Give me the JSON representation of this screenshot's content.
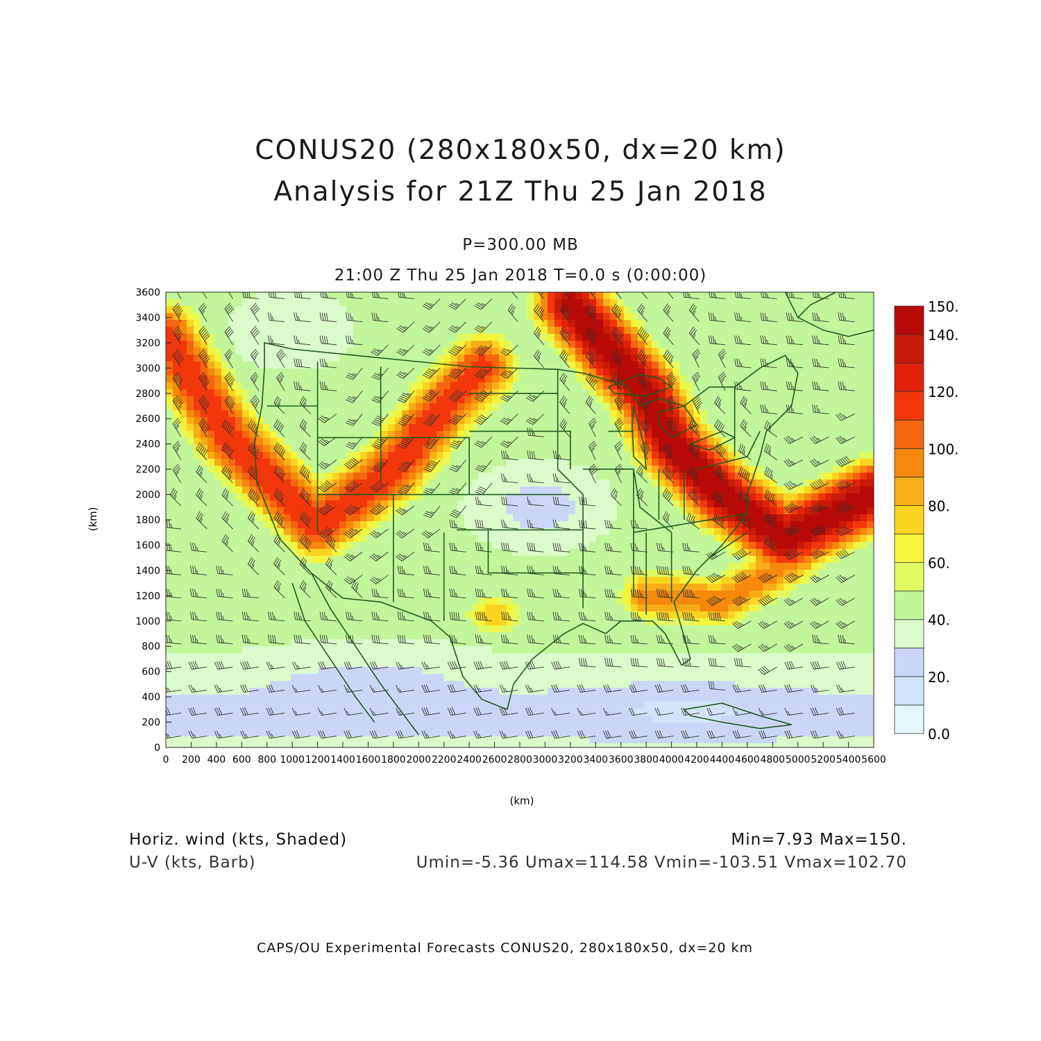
{
  "header": {
    "title_line1": "CONUS20 (280x180x50, dx=20 km)",
    "title_line2": "Analysis for 21Z Thu 25 Jan 2018",
    "level": "P=300.00 MB",
    "time": "21:00 Z Thu 25 Jan 2018    T=0.0 s (0:00:00)"
  },
  "axes": {
    "x_label": "(km)",
    "y_label": "(km)",
    "x_ticks": [
      0,
      200,
      400,
      600,
      800,
      1000,
      1200,
      1400,
      1600,
      1800,
      2000,
      2200,
      2400,
      2600,
      2800,
      3000,
      3200,
      3400,
      3600,
      3800,
      4000,
      4200,
      4400,
      4600,
      4800,
      5000,
      5200,
      5400,
      5600
    ],
    "y_ticks": [
      0,
      200,
      400,
      600,
      800,
      1000,
      1200,
      1400,
      1600,
      1800,
      2000,
      2200,
      2400,
      2600,
      2800,
      3000,
      3200,
      3400,
      3600
    ],
    "x_range": [
      0,
      5600
    ],
    "y_range": [
      0,
      3600
    ]
  },
  "colorbar": {
    "labels": [
      "0.0",
      "20.",
      "40.",
      "60.",
      "80.",
      "100.",
      "120.",
      "140.",
      "150."
    ],
    "levels": [
      0,
      10,
      20,
      30,
      40,
      50,
      60,
      70,
      80,
      90,
      100,
      110,
      120,
      130,
      140,
      150
    ],
    "colors": [
      "#e6f7fc",
      "#d2e4fa",
      "#cbd6f7",
      "#d9fcca",
      "#c1f79a",
      "#e0fa62",
      "#f4f43a",
      "#fbd422",
      "#f8ac18",
      "#f6880c",
      "#f56510",
      "#f3370c",
      "#df220a",
      "#c81a08",
      "#b80a06"
    ]
  },
  "chart_data": {
    "type": "heatmap",
    "field": "Horizontal wind speed (kts) with U-V barbs",
    "x_range_km": [
      0,
      5600
    ],
    "y_range_km": [
      0,
      3600
    ],
    "value_range": [
      7.93,
      150
    ],
    "jets": [
      {
        "path_km": [
          [
            0,
            3250
          ],
          [
            500,
            2450
          ],
          [
            1200,
            1750
          ],
          [
            1800,
            2200
          ],
          [
            2200,
            2700
          ],
          [
            2500,
            3000
          ]
        ],
        "peak_kts": 120
      },
      {
        "path_km": [
          [
            3200,
            3500
          ],
          [
            3800,
            2800
          ],
          [
            4000,
            2400
          ],
          [
            4400,
            2000
          ],
          [
            4900,
            1650
          ],
          [
            5600,
            2000
          ]
        ],
        "peak_kts": 150
      },
      {
        "path_km": [
          [
            3800,
            1200
          ],
          [
            4400,
            1150
          ],
          [
            5000,
            1500
          ]
        ],
        "peak_kts": 95
      }
    ]
  },
  "footer": {
    "field_name": "Horiz. wind (kts, Shaded)",
    "barb_name": "U-V (kts, Barb)",
    "minmax": "Min=7.93 Max=150.",
    "uv_minmax": "Umin=-5.36 Umax=114.58 Vmin=-103.51 Vmax=102.70",
    "credit": "CAPS/OU Experimental Forecasts  CONUS20, 280x180x50, dx=20 km"
  },
  "colors": {
    "map_lines": "#1f5a1f",
    "axis": "#222222"
  }
}
